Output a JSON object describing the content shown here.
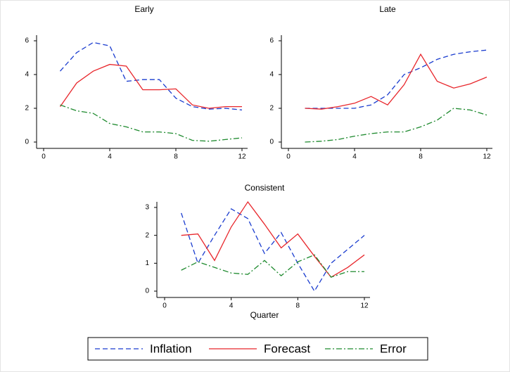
{
  "chart_data": [
    {
      "type": "line",
      "title": "Early",
      "x": [
        1,
        2,
        3,
        4,
        5,
        6,
        7,
        8,
        9,
        10,
        11,
        12
      ],
      "xlim": [
        0,
        12
      ],
      "xticks": [
        0,
        4,
        8,
        12
      ],
      "ylim": [
        0,
        6
      ],
      "yticks": [
        0,
        2,
        4,
        6
      ],
      "series": [
        {
          "name": "Inflation",
          "color": "#1a3ccf",
          "line_style": "dashed",
          "values": [
            4.2,
            5.3,
            5.9,
            5.7,
            3.6,
            3.7,
            3.7,
            2.6,
            2.1,
            1.95,
            2.0,
            1.9
          ]
        },
        {
          "name": "Forecast",
          "color": "#e8262b",
          "line_style": "solid",
          "values": [
            2.1,
            3.5,
            4.2,
            4.6,
            4.5,
            3.1,
            3.1,
            3.15,
            2.2,
            2.0,
            2.1,
            2.1
          ]
        },
        {
          "name": "Error",
          "color": "#1e8a2e",
          "line_style": "dashdot",
          "values": [
            2.2,
            1.85,
            1.7,
            1.1,
            0.9,
            0.6,
            0.6,
            0.5,
            0.1,
            0.05,
            0.15,
            0.25
          ]
        }
      ]
    },
    {
      "type": "line",
      "title": "Late",
      "x": [
        1,
        2,
        3,
        4,
        5,
        6,
        7,
        8,
        9,
        10,
        11,
        12
      ],
      "xlim": [
        0,
        12
      ],
      "xticks": [
        0,
        4,
        8,
        12
      ],
      "ylim": [
        0,
        6
      ],
      "yticks": [
        0,
        2,
        4,
        6
      ],
      "series": [
        {
          "name": "Inflation",
          "color": "#1a3ccf",
          "line_style": "dashed",
          "values": [
            2.0,
            2.0,
            2.0,
            2.0,
            2.2,
            2.8,
            4.0,
            4.4,
            4.9,
            5.2,
            5.35,
            5.45
          ]
        },
        {
          "name": "Forecast",
          "color": "#e8262b",
          "line_style": "solid",
          "values": [
            2.0,
            1.95,
            2.1,
            2.3,
            2.7,
            2.2,
            3.4,
            5.2,
            3.6,
            3.2,
            3.45,
            3.85
          ]
        },
        {
          "name": "Error",
          "color": "#1e8a2e",
          "line_style": "dashdot",
          "values": [
            0.0,
            0.05,
            0.15,
            0.35,
            0.5,
            0.6,
            0.6,
            0.9,
            1.3,
            2.0,
            1.9,
            1.6
          ]
        }
      ]
    },
    {
      "type": "line",
      "title": "Consistent",
      "x_label": "Quarter",
      "x": [
        1,
        2,
        3,
        4,
        5,
        6,
        7,
        8,
        9,
        10,
        11,
        12
      ],
      "xlim": [
        0,
        12
      ],
      "xticks": [
        0,
        4,
        8,
        12
      ],
      "ylim": [
        0,
        3
      ],
      "yticks": [
        0,
        1,
        2,
        3
      ],
      "series": [
        {
          "name": "Inflation",
          "color": "#1a3ccf",
          "line_style": "dashed",
          "values": [
            2.8,
            1.0,
            2.0,
            2.95,
            2.6,
            1.35,
            2.1,
            1.0,
            0.0,
            1.0,
            1.5,
            2.0
          ]
        },
        {
          "name": "Forecast",
          "color": "#e8262b",
          "line_style": "solid",
          "values": [
            2.0,
            2.05,
            1.1,
            2.3,
            3.2,
            2.4,
            1.55,
            2.05,
            1.25,
            0.5,
            0.85,
            1.3
          ]
        },
        {
          "name": "Error",
          "color": "#1e8a2e",
          "line_style": "dashdot",
          "values": [
            0.75,
            1.05,
            0.85,
            0.65,
            0.6,
            1.1,
            0.55,
            1.05,
            1.3,
            0.5,
            0.7,
            0.7
          ]
        }
      ]
    }
  ]
}
